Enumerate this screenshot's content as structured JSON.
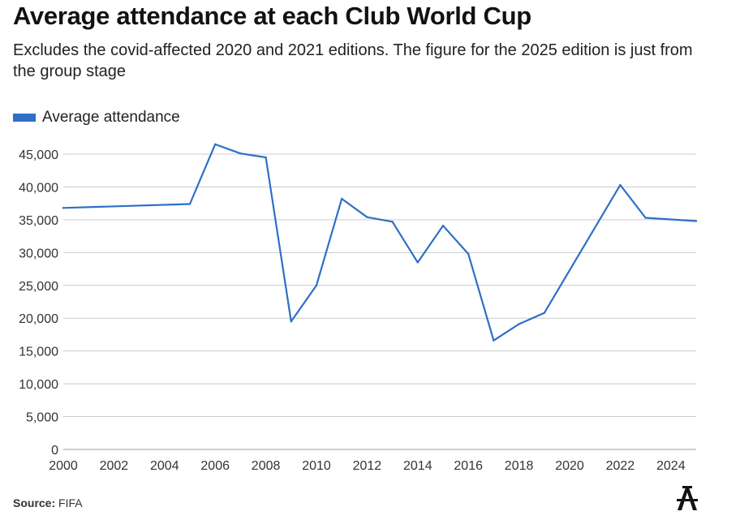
{
  "header": {
    "title": "Average attendance at each Club World Cup",
    "subtitle": "Excludes the covid-affected 2020 and 2021 editions. The figure for the 2025 edition is just from the group stage"
  },
  "footer": {
    "source_label": "Source:",
    "source_value": "FIFA",
    "logo_icon": "athletic-logo-icon"
  },
  "colors": {
    "line": "#2f6fc5",
    "grid": "#cccccc",
    "axis_text": "#333333"
  },
  "chart_data": {
    "type": "line",
    "title": "Average attendance at each Club World Cup",
    "xlabel": "",
    "ylabel": "",
    "xlim": [
      2000,
      2025
    ],
    "ylim": [
      0,
      45000
    ],
    "x_ticks": [
      2000,
      2002,
      2004,
      2006,
      2008,
      2010,
      2012,
      2014,
      2016,
      2018,
      2020,
      2022,
      2024
    ],
    "x_tick_labels": [
      "2000",
      "2002",
      "2004",
      "2006",
      "2008",
      "2010",
      "2012",
      "2014",
      "2016",
      "2018",
      "2020",
      "2022",
      "2024"
    ],
    "y_ticks": [
      0,
      5000,
      10000,
      15000,
      20000,
      25000,
      30000,
      35000,
      40000,
      45000
    ],
    "y_tick_labels": [
      "0",
      "5,000",
      "10,000",
      "15,000",
      "20,000",
      "25,000",
      "30,000",
      "35,000",
      "40,000",
      "45,000"
    ],
    "grid": true,
    "legend_position": "top-left",
    "series": [
      {
        "name": "Average attendance",
        "x": [
          2000,
          2005,
          2006,
          2007,
          2008,
          2009,
          2010,
          2011,
          2012,
          2013,
          2014,
          2015,
          2016,
          2017,
          2018,
          2019,
          2022,
          2023,
          2025
        ],
        "values": [
          36800,
          37400,
          46500,
          45100,
          44500,
          19500,
          25000,
          38200,
          35400,
          34700,
          28500,
          34100,
          29800,
          16600,
          19100,
          20800,
          40300,
          35300,
          34800
        ]
      }
    ]
  }
}
